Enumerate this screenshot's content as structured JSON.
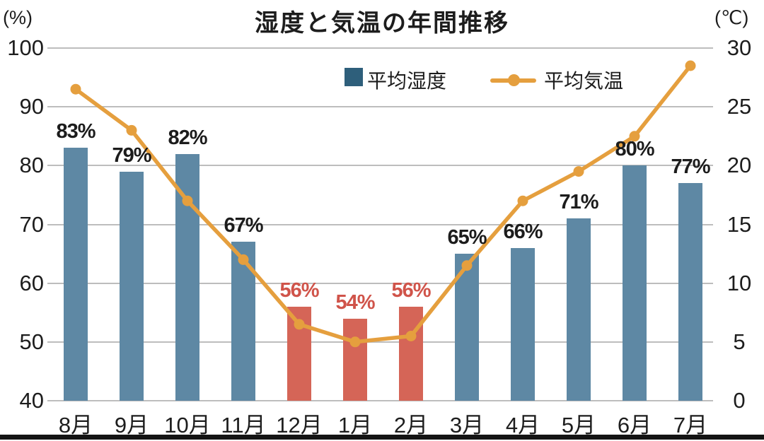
{
  "title": "湿度と気温の年間推移",
  "left_axis": {
    "unit": "(%)",
    "ticks": [
      100,
      90,
      80,
      70,
      60,
      50,
      40
    ]
  },
  "right_axis": {
    "unit": "(℃)",
    "ticks": [
      30,
      25,
      20,
      15,
      10,
      5,
      0
    ]
  },
  "legend": [
    {
      "label": "平均湿度",
      "marker": "square"
    },
    {
      "label": "平均気温",
      "marker": "line-dot"
    }
  ],
  "chart_data": {
    "type": "bar",
    "subtype": "bar+line dual-axis",
    "categories": [
      "8月",
      "9月",
      "10月",
      "11月",
      "12月",
      "1月",
      "2月",
      "3月",
      "4月",
      "5月",
      "6月",
      "7月"
    ],
    "series": [
      {
        "name": "平均湿度",
        "type": "bar",
        "axis": "left",
        "unit": "%",
        "values": [
          83,
          79,
          82,
          67,
          56,
          54,
          56,
          65,
          66,
          71,
          80,
          77
        ],
        "labels": [
          "83%",
          "79%",
          "82%",
          "67%",
          "56%",
          "54%",
          "56%",
          "65%",
          "66%",
          "71%",
          "80%",
          "77%"
        ],
        "highlighted_categories": [
          "12月",
          "1月",
          "2月"
        ]
      },
      {
        "name": "平均気温",
        "type": "line",
        "axis": "right",
        "unit": "℃",
        "values": [
          26.5,
          23,
          17,
          12,
          6.5,
          5,
          5.5,
          11.5,
          17,
          19.5,
          22.5,
          28.5
        ]
      }
    ],
    "left_ylim": [
      40,
      100
    ],
    "right_ylim": [
      0,
      30
    ],
    "grid": true,
    "legend_position": "top-center"
  },
  "colors": {
    "humidity_bar": "#5e88a4",
    "humidity_bar_highlight": "#d56557",
    "humidity_label": "#1c1c1c",
    "humidity_label_highlight": "#d0544a",
    "temperature_line": "#e59f3e",
    "legend_bar_swatch": "#2e5f7b",
    "gridline": "#bdbdbd",
    "axis_text": "#1d1d1d",
    "footer_bar": "#141414",
    "background": "#ffffff"
  }
}
